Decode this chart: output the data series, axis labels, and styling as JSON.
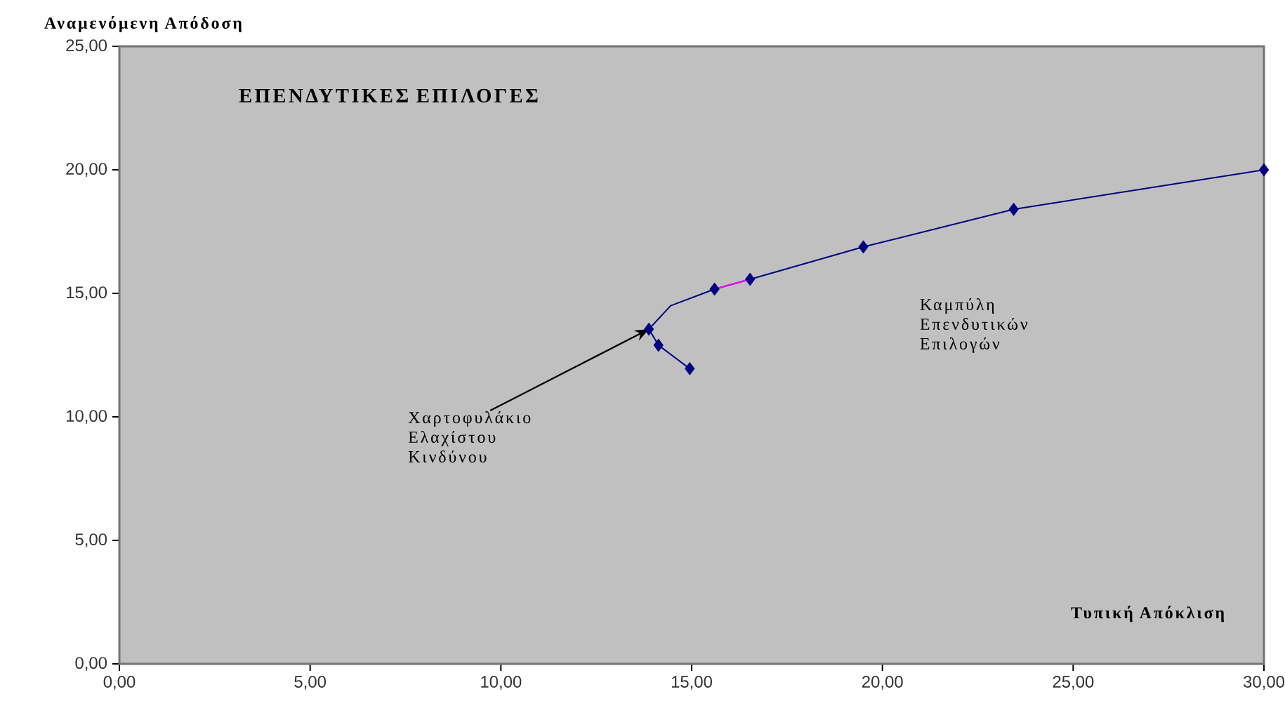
{
  "chart_data": {
    "type": "line",
    "title": "ΕΠΕΝΔΥΤΙΚΕΣ ΕΠΙΛΟΓΕΣ",
    "xlabel": "Τυπική Απόκλιση",
    "ylabel": "Αναμενόμενη Απόδοση",
    "annotations": [
      "Καμπύλη Επενδυτικών Επιλογών",
      {
        "text": "Χαρτοφυλάκιο Ελαχίστου Κινδύνου",
        "x": 13.88,
        "y": 13.55
      }
    ],
    "series": [
      {
        "color": "#000080",
        "x": [
          14.95,
          14.13,
          13.88,
          14.45,
          15.6,
          16.53,
          19.5,
          23.44,
          30
        ],
        "values": [
          11.95,
          12.9,
          13.55,
          14.5,
          15.17,
          15.57,
          16.88,
          18.4,
          20.0
        ]
      },
      {
        "color": "#ff00ff",
        "x": [
          15.6,
          16.53
        ],
        "values": [
          15.17,
          15.57
        ]
      },
      {
        "type": "scatter",
        "color": "#000080",
        "marker": "diamond",
        "x": [
          14.95,
          14.13,
          13.88,
          15.6,
          16.53,
          19.5,
          23.44,
          30
        ],
        "values": [
          11.95,
          12.9,
          13.55,
          15.17,
          15.57,
          16.88,
          18.4,
          20.0
        ]
      }
    ],
    "xlim": [
      0,
      30
    ],
    "ylim": [
      0,
      25
    ],
    "xticks": [
      {
        "value": 0,
        "label": "0,00"
      },
      {
        "value": 5,
        "label": "5,00"
      },
      {
        "value": 10,
        "label": "10,00"
      },
      {
        "value": 15,
        "label": "15,00"
      },
      {
        "value": 20,
        "label": "20,00"
      },
      {
        "value": 25,
        "label": "25,00"
      },
      {
        "value": 30,
        "label": "30,00"
      }
    ],
    "yticks": [
      {
        "value": 0,
        "label": "0,00"
      },
      {
        "value": 5,
        "label": "5,00"
      },
      {
        "value": 10,
        "label": "10,00"
      },
      {
        "value": 15,
        "label": "15,00"
      },
      {
        "value": 20,
        "label": "20,00"
      },
      {
        "value": 25,
        "label": "25,00"
      }
    ],
    "marker": "none"
  }
}
